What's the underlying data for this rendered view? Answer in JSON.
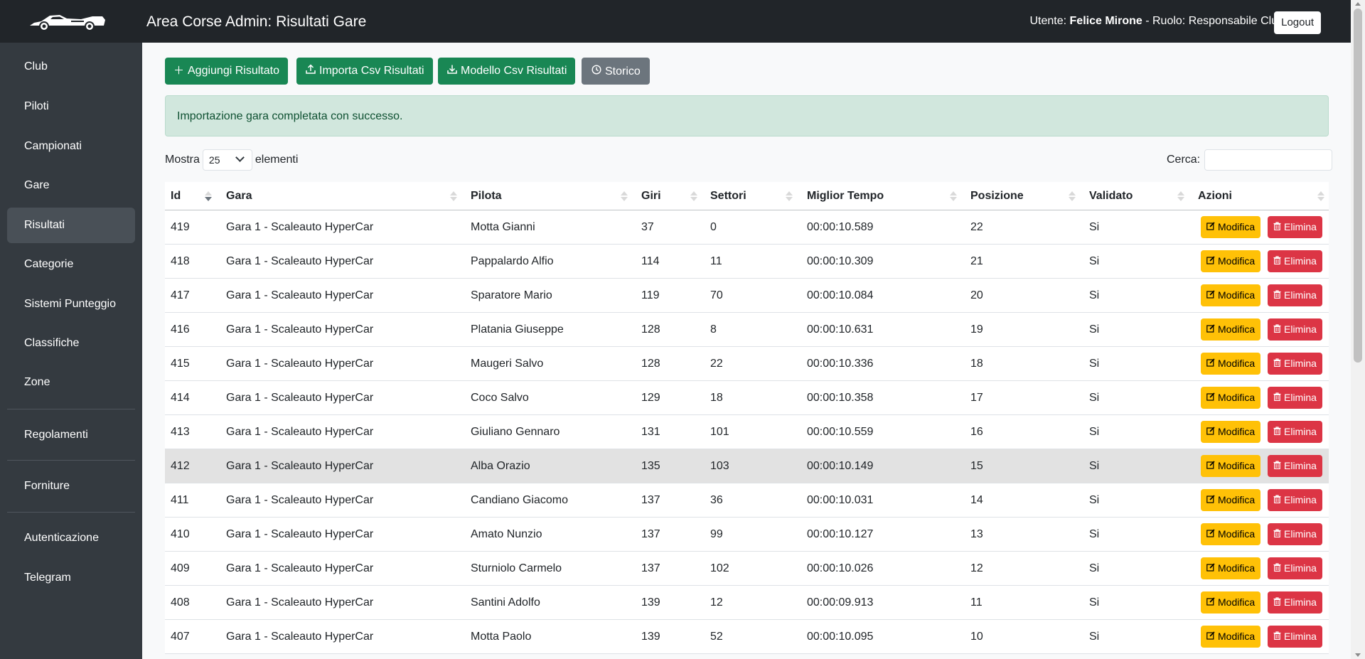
{
  "header": {
    "title": "Area Corse Admin: Risultati Gare",
    "user_label": "Utente:",
    "user_name": "Felice Mirone",
    "role_text": "- Ruolo: Responsabile Club",
    "logout_label": "Logout"
  },
  "sidebar": {
    "items": [
      {
        "label": "Club"
      },
      {
        "label": "Piloti"
      },
      {
        "label": "Campionati"
      },
      {
        "label": "Gare"
      },
      {
        "label": "Risultati",
        "active": true
      },
      {
        "label": "Categorie"
      },
      {
        "label": "Sistemi Punteggio"
      },
      {
        "label": "Classifiche"
      },
      {
        "label": "Zone"
      },
      {
        "label": "Regolamenti"
      },
      {
        "label": "Forniture"
      },
      {
        "label": "Autenticazione"
      },
      {
        "label": "Telegram"
      }
    ]
  },
  "toolbar": {
    "add_label": "Aggiungi Risultato",
    "import_label": "Importa Csv Risultati",
    "template_label": "Modello Csv Risultati",
    "history_label": "Storico"
  },
  "alert": {
    "message": "Importazione gara completata con successo."
  },
  "table_controls": {
    "show_label": "Mostra",
    "page_size": "25",
    "elements_label": "elementi",
    "search_label": "Cerca:"
  },
  "table": {
    "columns": [
      "Id",
      "Gara",
      "Pilota",
      "Giri",
      "Settori",
      "Miglior Tempo",
      "Posizione",
      "Validato",
      "Azioni"
    ],
    "edit_label": "Modifica",
    "delete_label": "Elimina",
    "rows": [
      {
        "id": "419",
        "gara": "Gara 1 - Scaleauto HyperCar",
        "pilota": "Motta Gianni",
        "giri": "37",
        "settori": "0",
        "tempo": "00:00:10.589",
        "posizione": "22",
        "validato": "Si"
      },
      {
        "id": "418",
        "gara": "Gara 1 - Scaleauto HyperCar",
        "pilota": "Pappalardo Alfio",
        "giri": "114",
        "settori": "11",
        "tempo": "00:00:10.309",
        "posizione": "21",
        "validato": "Si"
      },
      {
        "id": "417",
        "gara": "Gara 1 - Scaleauto HyperCar",
        "pilota": "Sparatore Mario",
        "giri": "119",
        "settori": "70",
        "tempo": "00:00:10.084",
        "posizione": "20",
        "validato": "Si"
      },
      {
        "id": "416",
        "gara": "Gara 1 - Scaleauto HyperCar",
        "pilota": "Platania Giuseppe",
        "giri": "128",
        "settori": "8",
        "tempo": "00:00:10.631",
        "posizione": "19",
        "validato": "Si"
      },
      {
        "id": "415",
        "gara": "Gara 1 - Scaleauto HyperCar",
        "pilota": "Maugeri Salvo",
        "giri": "128",
        "settori": "22",
        "tempo": "00:00:10.336",
        "posizione": "18",
        "validato": "Si"
      },
      {
        "id": "414",
        "gara": "Gara 1 - Scaleauto HyperCar",
        "pilota": "Coco Salvo",
        "giri": "129",
        "settori": "18",
        "tempo": "00:00:10.358",
        "posizione": "17",
        "validato": "Si"
      },
      {
        "id": "413",
        "gara": "Gara 1 - Scaleauto HyperCar",
        "pilota": "Giuliano Gennaro",
        "giri": "131",
        "settori": "101",
        "tempo": "00:00:10.559",
        "posizione": "16",
        "validato": "Si"
      },
      {
        "id": "412",
        "gara": "Gara 1 - Scaleauto HyperCar",
        "pilota": "Alba Orazio",
        "giri": "135",
        "settori": "103",
        "tempo": "00:00:10.149",
        "posizione": "15",
        "validato": "Si",
        "highlighted": true
      },
      {
        "id": "411",
        "gara": "Gara 1 - Scaleauto HyperCar",
        "pilota": "Candiano Giacomo",
        "giri": "137",
        "settori": "36",
        "tempo": "00:00:10.031",
        "posizione": "14",
        "validato": "Si"
      },
      {
        "id": "410",
        "gara": "Gara 1 - Scaleauto HyperCar",
        "pilota": "Amato Nunzio",
        "giri": "137",
        "settori": "99",
        "tempo": "00:00:10.127",
        "posizione": "13",
        "validato": "Si"
      },
      {
        "id": "409",
        "gara": "Gara 1 - Scaleauto HyperCar",
        "pilota": "Sturniolo Carmelo",
        "giri": "137",
        "settori": "102",
        "tempo": "00:00:10.026",
        "posizione": "12",
        "validato": "Si"
      },
      {
        "id": "408",
        "gara": "Gara 1 - Scaleauto HyperCar",
        "pilota": "Santini Adolfo",
        "giri": "139",
        "settori": "12",
        "tempo": "00:00:09.913",
        "posizione": "11",
        "validato": "Si"
      },
      {
        "id": "407",
        "gara": "Gara 1 - Scaleauto HyperCar",
        "pilota": "Motta Paolo",
        "giri": "139",
        "settori": "52",
        "tempo": "00:00:10.095",
        "posizione": "10",
        "validato": "Si"
      }
    ]
  },
  "theme": {
    "navbar_bg": "#212529",
    "sidebar_bg": "#343a40",
    "success": "#198754",
    "secondary": "#6c757d",
    "warning": "#ffc107",
    "danger": "#dc3545",
    "alert_bg": "#d1e7dd"
  },
  "icons": {
    "logo": "race-car-logo",
    "add": "plus-icon",
    "import": "upload-icon",
    "template": "download-icon",
    "history": "clock-icon",
    "edit": "pencil-square-icon",
    "delete": "trash-icon"
  }
}
